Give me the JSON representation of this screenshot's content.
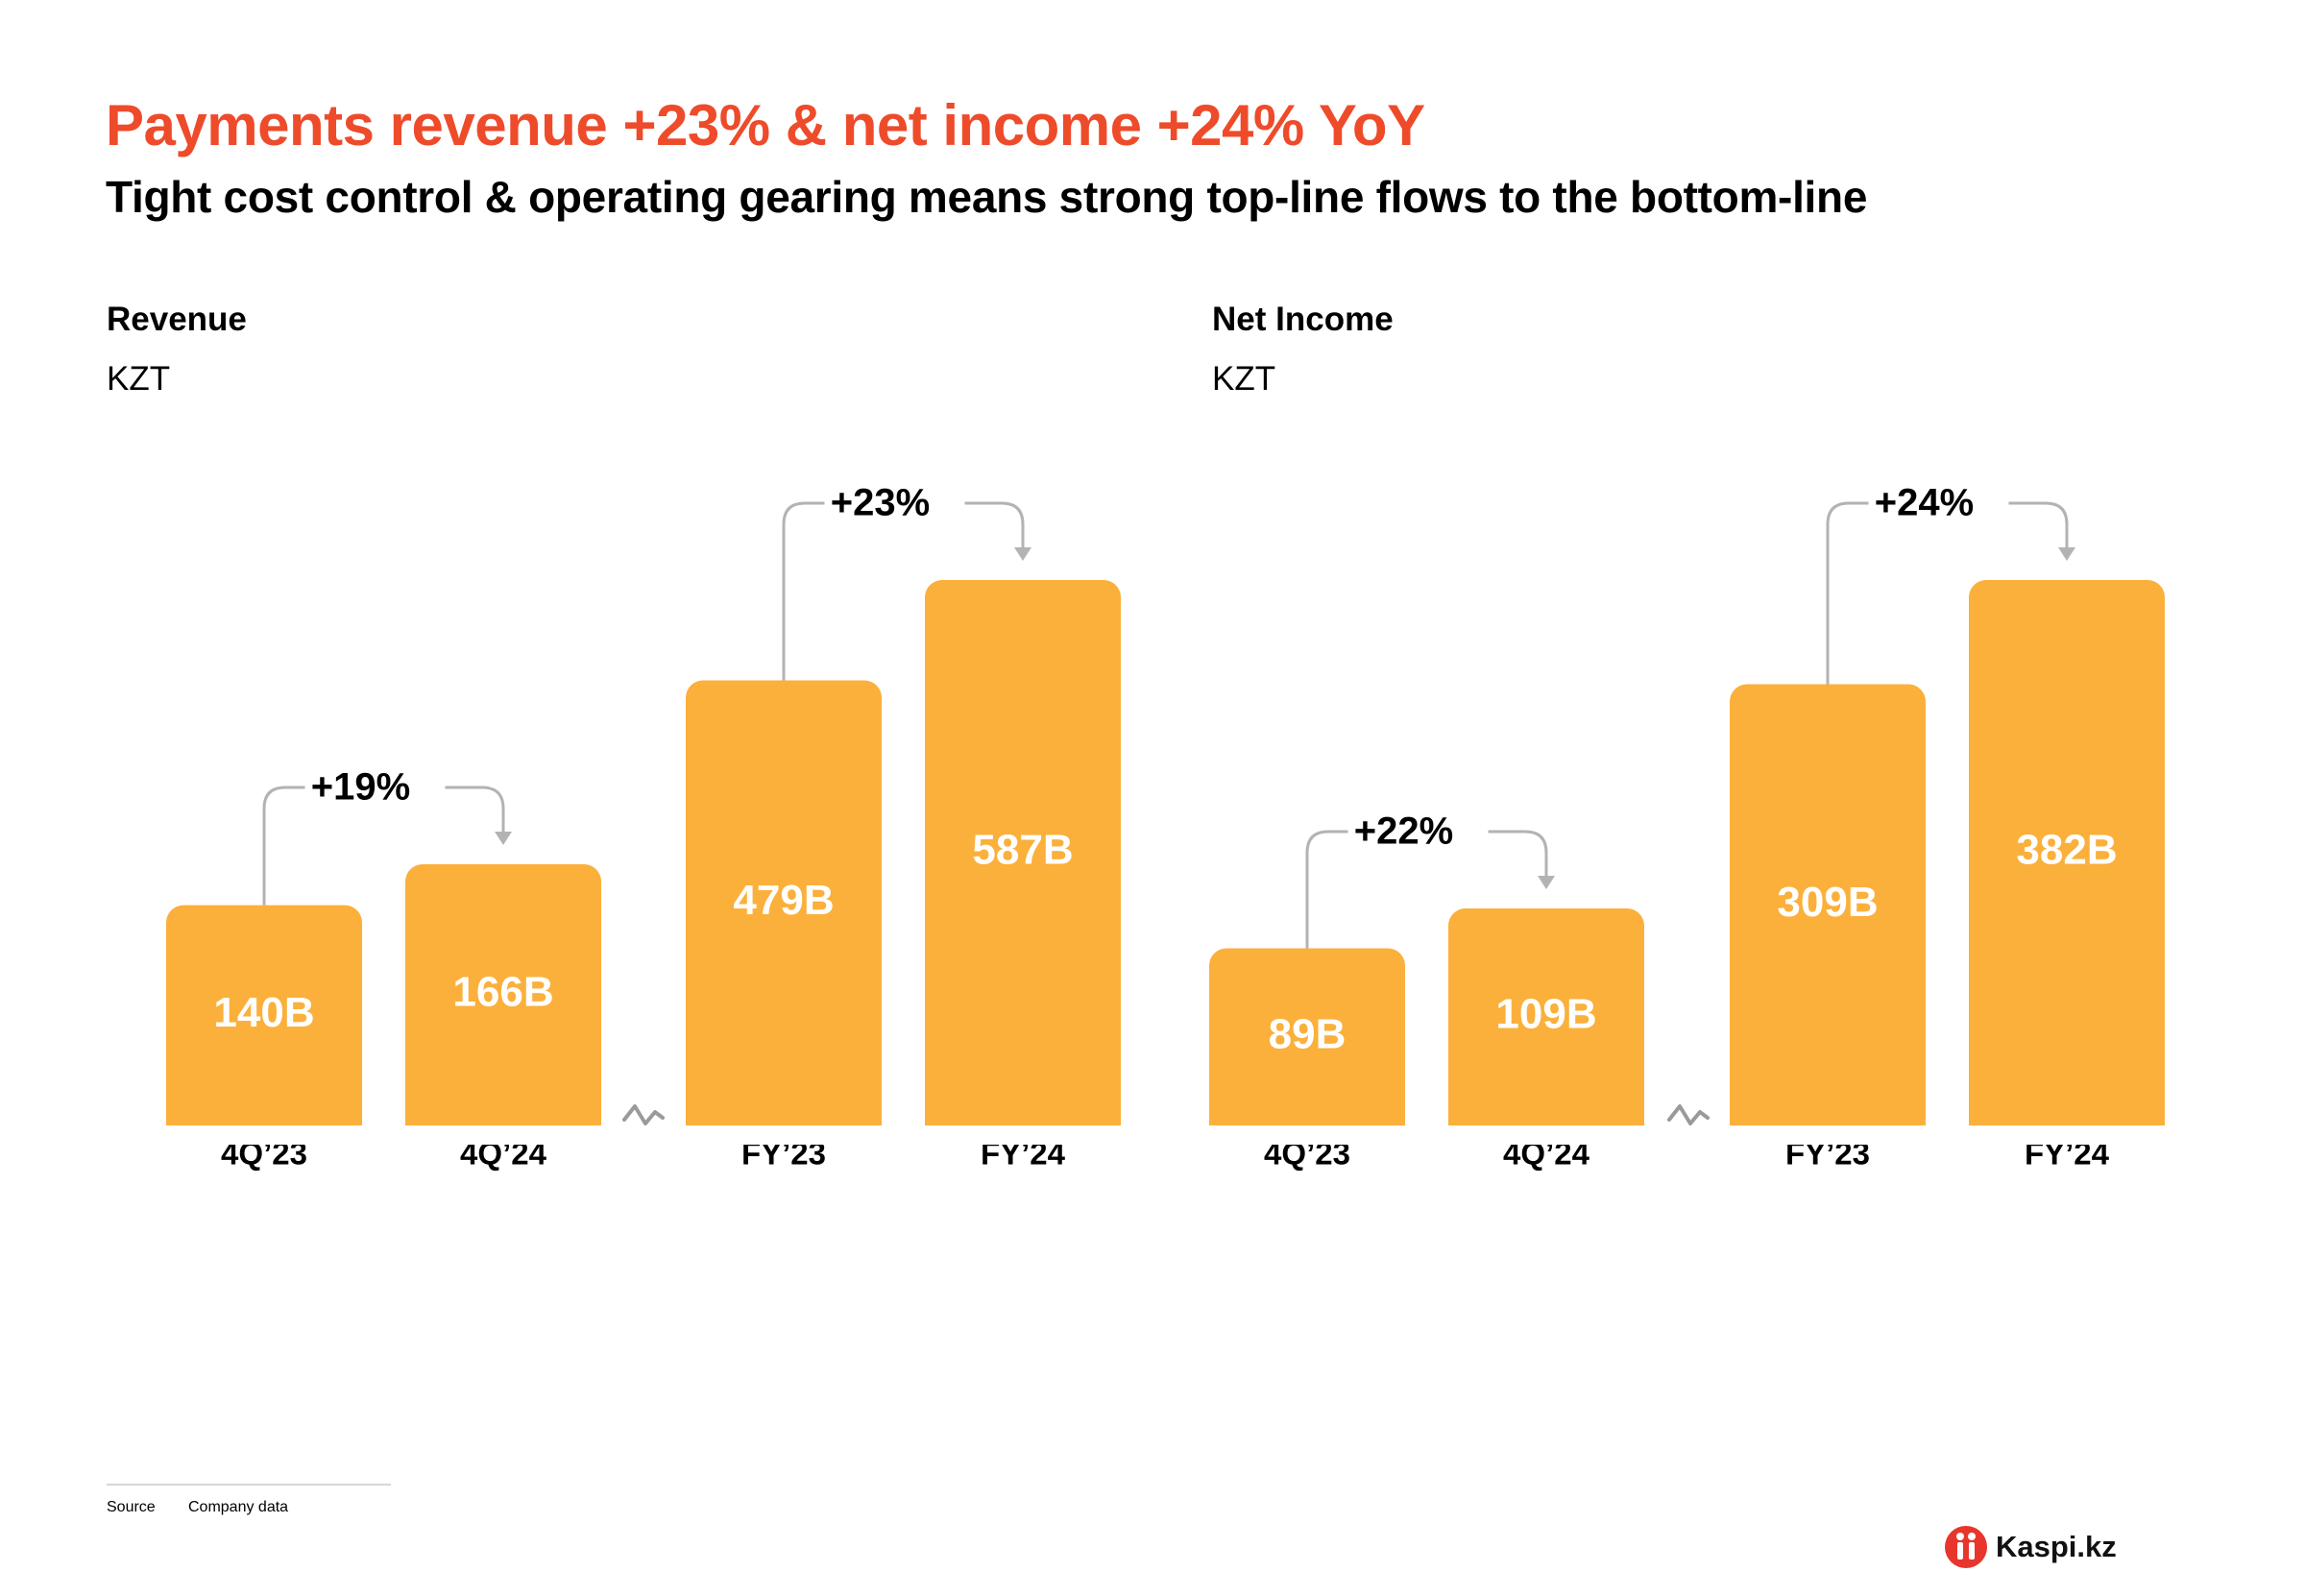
{
  "header": {
    "title": "Payments revenue +23% & net income +24% YoY",
    "subtitle": "Tight cost control & operating gearing means strong top-line flows to the bottom-line"
  },
  "colors": {
    "title": "#EE4B2B",
    "bar": "#FBB03B",
    "bar_label": "#ffffff",
    "connector": "#b3b3b3",
    "brand": "#E8362D"
  },
  "chart_data": [
    {
      "type": "bar",
      "title": "Revenue",
      "ylabel": "KZT",
      "categories": [
        "4Q’23",
        "4Q’24",
        "FY’23",
        "FY’24"
      ],
      "values": [
        140,
        166,
        479,
        587
      ],
      "value_labels": [
        "140B",
        "166B",
        "479B",
        "587B"
      ],
      "axis_break_between": [
        "4Q’24",
        "FY’23"
      ],
      "growth_annotations": [
        {
          "from": "4Q’23",
          "to": "4Q’24",
          "label": "+19%"
        },
        {
          "from": "FY’23",
          "to": "FY’24",
          "label": "+23%"
        }
      ],
      "grid": false,
      "legend": "none"
    },
    {
      "type": "bar",
      "title": "Net Income",
      "ylabel": "KZT",
      "categories": [
        "4Q’23",
        "4Q’24",
        "FY’23",
        "FY’24"
      ],
      "values": [
        89,
        109,
        309,
        382
      ],
      "value_labels": [
        "89B",
        "109B",
        "309B",
        "382B"
      ],
      "axis_break_between": [
        "4Q’24",
        "FY’23"
      ],
      "growth_annotations": [
        {
          "from": "4Q’23",
          "to": "4Q’24",
          "label": "+22%"
        },
        {
          "from": "FY’23",
          "to": "FY’24",
          "label": "+24%"
        }
      ],
      "grid": false,
      "legend": "none"
    }
  ],
  "footer": {
    "source_label": "Source",
    "source_value": "Company data",
    "brand_icon": "kaspi-logo-icon",
    "brand_name": "Kaspi.kz"
  }
}
